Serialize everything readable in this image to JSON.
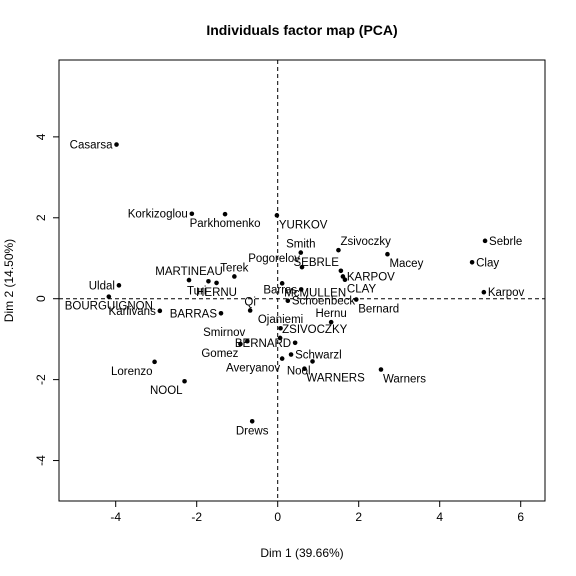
{
  "chart_data": {
    "type": "scatter",
    "title": "Individuals factor map (PCA)",
    "xlabel": "Dim 1 (39.66%)",
    "ylabel": "Dim 2 (14.50%)",
    "xlim": [
      -5.4,
      6.6
    ],
    "ylim": [
      -5.0,
      5.9
    ],
    "xticks": [
      -4,
      -2,
      0,
      2,
      4,
      6
    ],
    "yticks": [
      -4,
      -2,
      0,
      2,
      4
    ],
    "reference_lines": {
      "x": 0,
      "y": 0,
      "style": "dashed"
    },
    "grid": false,
    "color": "#000000",
    "points": [
      {
        "label": "Casarsa",
        "x": -3.98,
        "y": 3.81,
        "pos": "left"
      },
      {
        "label": "Korkizoglou",
        "x": -2.12,
        "y": 2.1,
        "pos": "left"
      },
      {
        "label": "Parkhomenko",
        "x": -1.3,
        "y": 2.09,
        "pos": "below"
      },
      {
        "label": "YURKOV",
        "x": -0.02,
        "y": 2.06,
        "pos": "below-right"
      },
      {
        "label": "Sebrle",
        "x": 5.12,
        "y": 1.43,
        "pos": "right"
      },
      {
        "label": "Clay",
        "x": 4.8,
        "y": 0.9,
        "pos": "right"
      },
      {
        "label": "Karpov",
        "x": 5.09,
        "y": 0.16,
        "pos": "right"
      },
      {
        "label": "Zsivoczky",
        "x": 1.5,
        "y": 1.2,
        "pos": "above-right"
      },
      {
        "label": "Smith",
        "x": 0.57,
        "y": 1.14,
        "pos": "above"
      },
      {
        "label": "Macey",
        "x": 2.71,
        "y": 1.1,
        "pos": "below-right"
      },
      {
        "label": "Pogorelov",
        "x": 0.6,
        "y": 0.78,
        "pos": "above-left"
      },
      {
        "label": "SEBRLE",
        "x": 1.56,
        "y": 0.69,
        "pos": "above-left"
      },
      {
        "label": "KARPOV",
        "x": 1.61,
        "y": 0.55,
        "pos": "right"
      },
      {
        "label": "CLAY",
        "x": 1.66,
        "y": 0.47,
        "pos": "below-right"
      },
      {
        "label": "MARTINEAU",
        "x": -2.19,
        "y": 0.46,
        "pos": "above"
      },
      {
        "label": "Terek",
        "x": -1.07,
        "y": 0.55,
        "pos": "above"
      },
      {
        "label": "Uldal",
        "x": -3.92,
        "y": 0.33,
        "pos": "left"
      },
      {
        "label": "Turi",
        "x": -1.71,
        "y": 0.43,
        "pos": "below-left"
      },
      {
        "label": "HERNU",
        "x": -1.51,
        "y": 0.39,
        "pos": "below"
      },
      {
        "label": "McMULLEN",
        "x": 0.11,
        "y": 0.38,
        "pos": "below-right"
      },
      {
        "label": "Barras",
        "x": 0.58,
        "y": 0.23,
        "pos": "left"
      },
      {
        "label": "BOURGUIGNON",
        "x": -4.17,
        "y": 0.05,
        "pos": "below"
      },
      {
        "label": "Schoenbeck",
        "x": 0.25,
        "y": -0.05,
        "pos": "right"
      },
      {
        "label": "Bernard",
        "x": 1.94,
        "y": -0.02,
        "pos": "below-right"
      },
      {
        "label": "Karlivans",
        "x": -2.91,
        "y": -0.3,
        "pos": "left"
      },
      {
        "label": "BARRAS",
        "x": -1.4,
        "y": -0.36,
        "pos": "left"
      },
      {
        "label": "Qi",
        "x": -0.68,
        "y": -0.29,
        "pos": "above"
      },
      {
        "label": "Hernu",
        "x": 1.32,
        "y": -0.58,
        "pos": "above"
      },
      {
        "label": "Ojaniemi",
        "x": 0.07,
        "y": -0.73,
        "pos": "above"
      },
      {
        "label": "Smirnov",
        "x": -0.75,
        "y": -1.05,
        "pos": "above-left"
      },
      {
        "label": "ZSIVOCZKY",
        "x": 0.06,
        "y": -0.97,
        "pos": "above-right"
      },
      {
        "label": "BERNARD",
        "x": 0.43,
        "y": -1.09,
        "pos": "left"
      },
      {
        "label": "Gomez",
        "x": -0.92,
        "y": -1.12,
        "pos": "below-left"
      },
      {
        "label": "Schwarzl",
        "x": 0.33,
        "y": -1.38,
        "pos": "right"
      },
      {
        "label": "Averyanov",
        "x": 0.11,
        "y": -1.48,
        "pos": "below-left"
      },
      {
        "label": "Nool",
        "x": 0.86,
        "y": -1.55,
        "pos": "below-left"
      },
      {
        "label": "WARNERS",
        "x": 0.66,
        "y": -1.73,
        "pos": "below-right"
      },
      {
        "label": "Warners",
        "x": 2.55,
        "y": -1.75,
        "pos": "below-right"
      },
      {
        "label": "Lorenzo",
        "x": -3.04,
        "y": -1.56,
        "pos": "below-left"
      },
      {
        "label": "NOOL",
        "x": -2.3,
        "y": -2.04,
        "pos": "below-left"
      },
      {
        "label": "Drews",
        "x": -0.63,
        "y": -3.03,
        "pos": "below"
      }
    ]
  }
}
